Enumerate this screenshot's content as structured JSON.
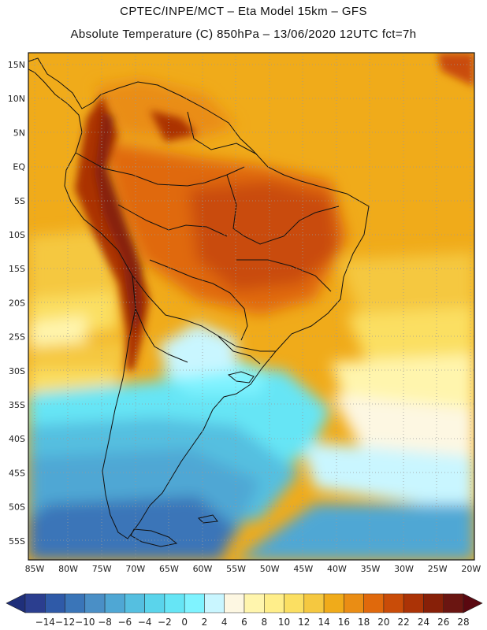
{
  "header": {
    "line1": "CPTEC/INPE/MCT –  Eta Model 15km – GFS",
    "line2": "Absolute Temperature (C) 850hPa – 13/06/2020 12UTC fct=7h"
  },
  "map": {
    "lat_labels": [
      "15N",
      "10N",
      "5N",
      "EQ",
      "5S",
      "10S",
      "15S",
      "20S",
      "25S",
      "30S",
      "35S",
      "40S",
      "45S",
      "50S",
      "55S"
    ],
    "lon_labels": [
      "85W",
      "80W",
      "75W",
      "70W",
      "65W",
      "60W",
      "55W",
      "50W",
      "45W",
      "40W",
      "35W",
      "30W",
      "25W",
      "20W"
    ],
    "lat_range": [
      -58,
      17
    ],
    "lon_range": [
      -86,
      -19
    ]
  },
  "colorbar": {
    "labels": [
      "-14",
      "-12",
      "-10",
      "-8",
      "-6",
      "-4",
      "-2",
      "0",
      "2",
      "4",
      "6",
      "8",
      "10",
      "12",
      "14",
      "16",
      "18",
      "20",
      "22",
      "24",
      "26",
      "28"
    ],
    "colors": [
      "#2b3e8f",
      "#2f5aa8",
      "#3a75b8",
      "#4a8fc6",
      "#4fa7d4",
      "#55bfe0",
      "#5ad4eb",
      "#66e5f5",
      "#7ff3ff",
      "#c9f6ff",
      "#fdf7e2",
      "#fff5ad",
      "#ffee8a",
      "#fbdf62",
      "#f5c840",
      "#f0ab1a",
      "#ea8d14",
      "#e0690c",
      "#c94c08",
      "#ab3306",
      "#872008",
      "#6a1511"
    ],
    "under_color": "#1f2f7a",
    "over_color": "#5a0810"
  }
}
